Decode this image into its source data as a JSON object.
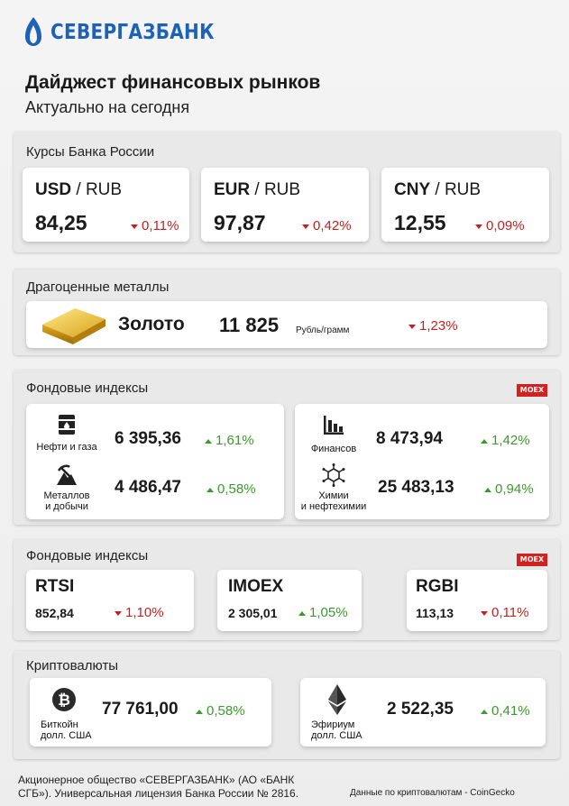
{
  "brand": {
    "name": "СЕВЕРГАЗБАНК",
    "color": "#1e62b8"
  },
  "header": {
    "title": "Дайджест финансовых рынков",
    "subtitle": "Актуально на сегодня"
  },
  "rates": {
    "label": "Курсы Банка России",
    "items": [
      {
        "base": "USD",
        "quote": " / RUB",
        "value": "84,25",
        "change": "0,11%",
        "direction": "down"
      },
      {
        "base": "EUR",
        "quote": " / RUB",
        "value": "97,87",
        "change": "0,42%",
        "direction": "down"
      },
      {
        "base": "CNY",
        "quote": " / RUB",
        "value": "12,55",
        "change": "0,09%",
        "direction": "down"
      }
    ]
  },
  "metals": {
    "label": "Драгоценные металлы",
    "name": "Золото",
    "value": "11 825",
    "unit": "Рубль/грамм",
    "change": "1,23%",
    "direction": "down",
    "icon": "gold-bar-icon"
  },
  "sector_indices": {
    "label": "Фондовые индексы",
    "badge": "MOEX",
    "items": [
      {
        "label_lines": [
          "Нефти и газа"
        ],
        "value": "6 395,36",
        "change": "1,61%",
        "direction": "up",
        "icon": "oil-barrel-icon"
      },
      {
        "label_lines": [
          "Металлов",
          "и добычи"
        ],
        "value": "4 486,47",
        "change": "0,58%",
        "direction": "up",
        "icon": "mining-icon"
      },
      {
        "label_lines": [
          "Финансов"
        ],
        "value": "8 473,94",
        "change": "1,42%",
        "direction": "up",
        "icon": "bar-chart-icon"
      },
      {
        "label_lines": [
          "Химии",
          "и нефтехимии"
        ],
        "value": "25 483,13",
        "change": "0,94%",
        "direction": "up",
        "icon": "molecule-icon"
      }
    ]
  },
  "main_indices": {
    "label": "Фондовые индексы",
    "badge": "MOEX",
    "items": [
      {
        "name": "RTSI",
        "value": "852,84",
        "change": "1,10%",
        "direction": "down"
      },
      {
        "name": "IMOEX",
        "value": "2 305,01",
        "change": "1,05%",
        "direction": "up"
      },
      {
        "name": "RGBI",
        "value": "113,13",
        "change": "0,11%",
        "direction": "down"
      }
    ]
  },
  "crypto": {
    "label": "Криптовалюты",
    "items": [
      {
        "label_lines": [
          "Биткойн",
          "долл. США"
        ],
        "value": "77 761,00",
        "change": "0,58%",
        "direction": "up",
        "icon": "bitcoin-icon"
      },
      {
        "label_lines": [
          "Эфириум",
          "долл. США"
        ],
        "value": "2 522,35",
        "change": "0,41%",
        "direction": "up",
        "icon": "ethereum-icon"
      }
    ]
  },
  "footer": {
    "license_line1": "Акционерное общество «СЕВЕРГАЗБАНК» (АО «БАНК",
    "license_line2": "СГБ»). Универсальная лицензия Банка России № 2816.",
    "crypto_source": "Данные по криптовалютам - CoinGecko"
  },
  "colors": {
    "down": "#c61f1f",
    "up": "#3a9a2a",
    "moex_badge": "#d2211f"
  }
}
